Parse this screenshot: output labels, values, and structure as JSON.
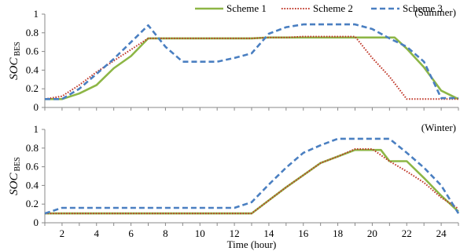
{
  "chart_data": [
    {
      "type": "line",
      "annotation": "(Summer)",
      "xlim": [
        1,
        25
      ],
      "ylim": [
        0,
        1
      ],
      "yticks": [
        0,
        0.2,
        0.4,
        0.6,
        0.8,
        1
      ],
      "ylabel": "SOC",
      "ylabel_sub": "BES",
      "grid": false,
      "legend": "top",
      "series": [
        {
          "name": "Scheme 1",
          "color": "#8DB646",
          "dash": "solid",
          "x": [
            1,
            2,
            3,
            4,
            5,
            6,
            7,
            8,
            9,
            10,
            11,
            12,
            13,
            14,
            15,
            16,
            17,
            18,
            19,
            20,
            21,
            21.3,
            22,
            23,
            24,
            25
          ],
          "y": [
            0.09,
            0.09,
            0.15,
            0.24,
            0.42,
            0.55,
            0.74,
            0.74,
            0.74,
            0.74,
            0.74,
            0.74,
            0.74,
            0.75,
            0.75,
            0.75,
            0.75,
            0.75,
            0.75,
            0.75,
            0.75,
            0.75,
            0.63,
            0.43,
            0.18,
            0.09
          ]
        },
        {
          "name": "Scheme 2",
          "color": "#C0392B",
          "dash": "dot",
          "x": [
            1,
            2,
            3,
            4,
            5,
            6,
            7,
            8,
            9,
            10,
            11,
            12,
            13,
            14,
            15,
            16,
            17,
            18,
            19,
            20,
            21,
            22,
            23,
            24,
            25
          ],
          "y": [
            0.09,
            0.12,
            0.24,
            0.38,
            0.5,
            0.62,
            0.74,
            0.74,
            0.74,
            0.74,
            0.74,
            0.74,
            0.74,
            0.75,
            0.75,
            0.76,
            0.76,
            0.76,
            0.76,
            0.53,
            0.33,
            0.09,
            0.09,
            0.09,
            0.09
          ]
        },
        {
          "name": "Scheme 3",
          "color": "#4A7FC1",
          "dash": "dash",
          "x": [
            1,
            2,
            3,
            4,
            5,
            6,
            7,
            8,
            9,
            10,
            11,
            12,
            13,
            14,
            15,
            16,
            17,
            18,
            19,
            20,
            21,
            22,
            23,
            24,
            25
          ],
          "y": [
            0.09,
            0.09,
            0.2,
            0.36,
            0.52,
            0.7,
            0.88,
            0.65,
            0.49,
            0.49,
            0.49,
            0.53,
            0.58,
            0.79,
            0.86,
            0.89,
            0.89,
            0.89,
            0.89,
            0.84,
            0.74,
            0.65,
            0.49,
            0.1,
            0.1
          ]
        }
      ]
    },
    {
      "type": "line",
      "annotation": "(Winter)",
      "xlim": [
        1,
        25
      ],
      "ylim": [
        0,
        1
      ],
      "yticks": [
        0,
        0.2,
        0.4,
        0.6,
        0.8,
        1
      ],
      "xticks": [
        2,
        4,
        6,
        8,
        10,
        12,
        14,
        16,
        18,
        20,
        22,
        24
      ],
      "xlabel": "Time (hour)",
      "ylabel": "SOC",
      "ylabel_sub": "BES",
      "grid": false,
      "series": [
        {
          "name": "Scheme 1",
          "color": "#8DB646",
          "dash": "solid",
          "x": [
            1,
            2,
            3,
            4,
            5,
            6,
            7,
            8,
            9,
            10,
            11,
            12,
            13,
            14,
            15,
            16,
            17,
            18,
            19,
            20,
            20.5,
            21,
            21.5,
            22,
            23,
            24,
            25
          ],
          "y": [
            0.1,
            0.1,
            0.1,
            0.1,
            0.1,
            0.1,
            0.1,
            0.1,
            0.1,
            0.1,
            0.1,
            0.1,
            0.1,
            0.24,
            0.38,
            0.51,
            0.64,
            0.71,
            0.78,
            0.78,
            0.78,
            0.66,
            0.66,
            0.66,
            0.48,
            0.29,
            0.12
          ]
        },
        {
          "name": "Scheme 2",
          "color": "#C0392B",
          "dash": "dot",
          "x": [
            1,
            2,
            3,
            4,
            5,
            6,
            7,
            8,
            9,
            10,
            11,
            12,
            13,
            14,
            15,
            16,
            17,
            18,
            19,
            20,
            21,
            22,
            23,
            24,
            25
          ],
          "y": [
            0.1,
            0.1,
            0.1,
            0.1,
            0.1,
            0.1,
            0.1,
            0.1,
            0.1,
            0.1,
            0.1,
            0.1,
            0.1,
            0.24,
            0.38,
            0.51,
            0.64,
            0.71,
            0.79,
            0.79,
            0.66,
            0.55,
            0.43,
            0.27,
            0.15
          ]
        },
        {
          "name": "Scheme 3",
          "color": "#4A7FC1",
          "dash": "dash",
          "x": [
            1,
            2,
            3,
            4,
            5,
            6,
            7,
            8,
            9,
            10,
            11,
            12,
            13,
            14,
            15,
            16,
            17,
            18,
            19,
            20,
            21,
            22,
            23,
            24,
            25
          ],
          "y": [
            0.1,
            0.16,
            0.16,
            0.16,
            0.16,
            0.16,
            0.16,
            0.16,
            0.16,
            0.16,
            0.16,
            0.16,
            0.22,
            0.41,
            0.59,
            0.75,
            0.83,
            0.9,
            0.9,
            0.9,
            0.9,
            0.75,
            0.59,
            0.4,
            0.1
          ]
        }
      ]
    }
  ]
}
